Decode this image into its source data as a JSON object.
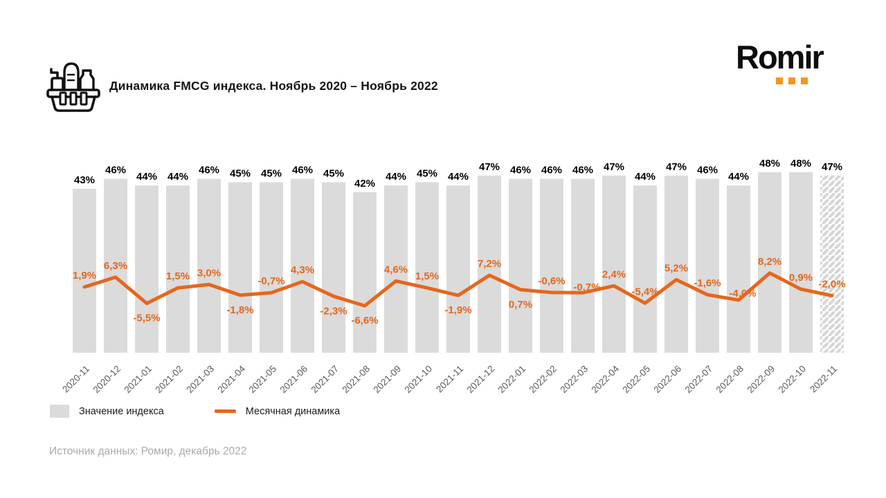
{
  "header": {
    "title": "Динамика FMCG индекса. Ноябрь 2020 – Ноябрь 2022"
  },
  "logo": {
    "text": "Romir"
  },
  "legend": {
    "bars_label": "Значение индекса",
    "line_label": "Месячная динамика"
  },
  "source_text": "Источник данных: Ромир, декабрь 2022",
  "colors": {
    "bar": "#dbdbdb",
    "bar_hatch_stripe": "#d6d6d6",
    "line": "#e5671c",
    "line_label": "#e5671c",
    "logo_accent": "#f7941d",
    "axis_text": "#5a5a5a",
    "source_text": "#a9a9a9"
  },
  "chart_data": {
    "type": "bar",
    "subtype": "bar-with-line-overlay",
    "categories": [
      "2020-11",
      "2020-12",
      "2021-01",
      "2021-02",
      "2021-03",
      "2021-04",
      "2021-05",
      "2021-06",
      "2021-07",
      "2021-08",
      "2021-09",
      "2021-10",
      "2021-11",
      "2021-12",
      "2022-01",
      "2022-02",
      "2022-03",
      "2022-04",
      "2022-05",
      "2022-06",
      "2022-07",
      "2022-08",
      "2022-09",
      "2022-10",
      "2022-11"
    ],
    "series": [
      {
        "name": "Значение индекса",
        "type": "bar",
        "values": [
          43,
          46,
          44,
          44,
          46,
          45,
          45,
          46,
          45,
          42,
          44,
          45,
          44,
          47,
          46,
          46,
          46,
          47,
          44,
          47,
          46,
          44,
          48,
          48,
          47
        ],
        "labels": [
          "43%",
          "46%",
          "44%",
          "44%",
          "46%",
          "45%",
          "45%",
          "46%",
          "45%",
          "42%",
          "44%",
          "45%",
          "44%",
          "47%",
          "46%",
          "46%",
          "46%",
          "47%",
          "44%",
          "47%",
          "46%",
          "44%",
          "48%",
          "48%",
          "47%"
        ],
        "last_bar_hatched": true
      },
      {
        "name": "Месячная динамика",
        "type": "line",
        "values": [
          1.9,
          6.3,
          -5.5,
          1.5,
          3.0,
          -1.8,
          -0.7,
          4.3,
          -2.3,
          -6.6,
          4.6,
          1.5,
          -1.9,
          7.2,
          0.7,
          -0.6,
          -0.7,
          2.4,
          -5.4,
          5.2,
          -1.6,
          -4.0,
          8.2,
          0.9,
          -2.0
        ],
        "labels": [
          "1,9%",
          "6,3%",
          "-5,5%",
          "1,5%",
          "3,0%",
          "-1,8%",
          "-0,7%",
          "4,3%",
          "-2,3%",
          "-6,6%",
          "4,6%",
          "1,5%",
          "-1,9%",
          "7,2%",
          "0,7%",
          "-0,6%",
          "-0,7%",
          "2,4%",
          "-5,4%",
          "5,2%",
          "-1,6%",
          "-4,0%",
          "8,2%",
          "0,9%",
          "-2,0%"
        ],
        "label_positions": [
          "above",
          "above",
          "below",
          "above",
          "above",
          "below",
          "above",
          "above",
          "below",
          "below",
          "above",
          "above",
          "below",
          "above",
          "below",
          "above",
          "above",
          "above",
          "above",
          "above",
          "above",
          "above",
          "above",
          "above",
          "above"
        ]
      }
    ],
    "title": "Динамика FMCG индекса. Ноябрь 2020 – Ноябрь 2022",
    "xlabel": "",
    "ylabel": "",
    "legend_position": "bottom-left",
    "grid": false,
    "bar_value_range_shown": [
      42,
      48
    ],
    "line_value_range_shown": [
      -6.6,
      8.2
    ]
  }
}
